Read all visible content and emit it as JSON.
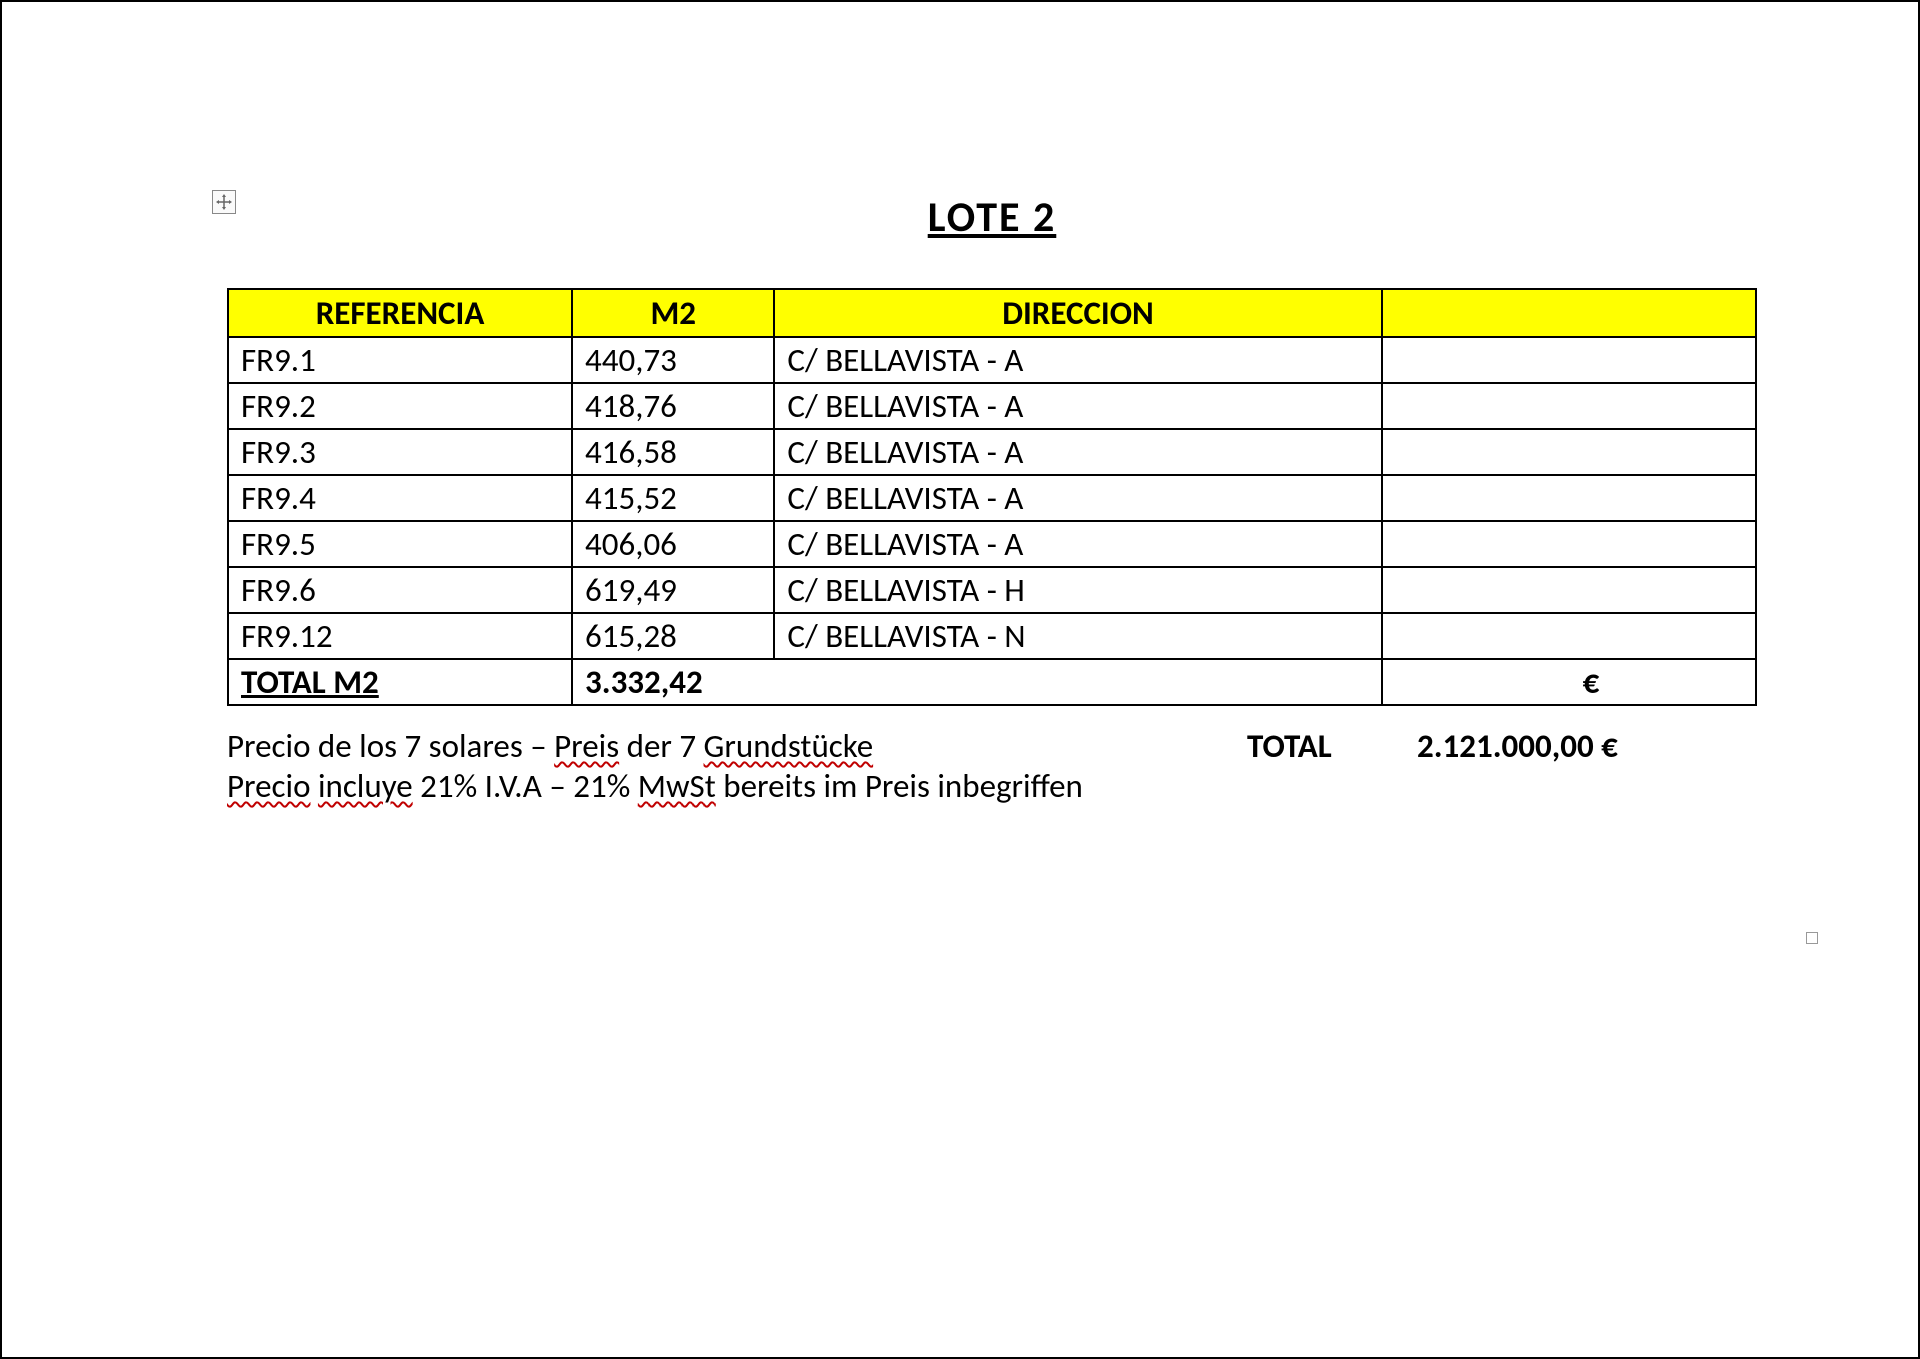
{
  "title": "LOTE  2",
  "table": {
    "headers": {
      "ref": "REFERENCIA",
      "m2": "M2",
      "dir": "DIRECCION",
      "empty": ""
    },
    "header_bg": "#ffff00",
    "border_color": "#000000",
    "rows": [
      {
        "ref": "FR9.1",
        "m2": "440,73",
        "dir": "C/ BELLAVISTA - A",
        "c4": ""
      },
      {
        "ref": "FR9.2",
        "m2": "418,76",
        "dir": "C/ BELLAVISTA - A",
        "c4": ""
      },
      {
        "ref": "FR9.3",
        "m2": "416,58",
        "dir": "C/ BELLAVISTA - A",
        "c4": ""
      },
      {
        "ref": "FR9.4",
        "m2": "415,52",
        "dir": "C/ BELLAVISTA - A",
        "c4": ""
      },
      {
        "ref": "FR9.5",
        "m2": "406,06",
        "dir": "C/ BELLAVISTA - A",
        "c4": ""
      },
      {
        "ref": "FR9.6",
        "m2": "619,49",
        "dir": "C/ BELLAVISTA - H",
        "c4": ""
      },
      {
        "ref": "FR9.12",
        "m2": "615,28",
        "dir": "C/ BELLAVISTA - N",
        "c4": ""
      }
    ],
    "total_row": {
      "label": "TOTAL M2",
      "value": "3.332,42",
      "euro": "€"
    }
  },
  "footer": {
    "line1_a": "Precio de los 7 solares – ",
    "line1_b": "Preis",
    "line1_c": " der 7 ",
    "line1_d": "Grundstücke",
    "total_label": "TOTAL",
    "total_value": "2.121.000,00 €",
    "line2_a": "Precio",
    "line2_b": " ",
    "line2_c": "incluye",
    "line2_d": " 21% I.V.A – 21% ",
    "line2_e": "MwSt",
    "line2_f": " bereits im Preis inbegriffen"
  },
  "anchor_glyph": "✥"
}
